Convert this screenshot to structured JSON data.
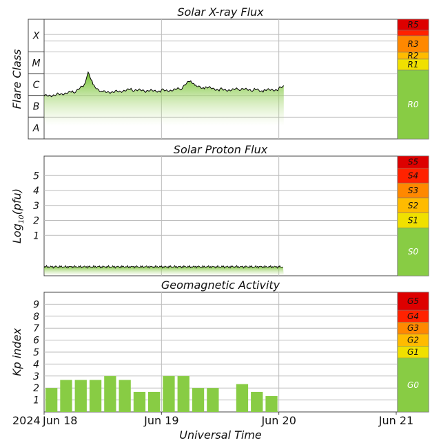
{
  "chart_data": [
    {
      "type": "area",
      "title": "Solar X-ray Flux",
      "ylabel": "Flare Class",
      "y_scale": "log",
      "flare_classes": [
        "X",
        "M",
        "C",
        "B",
        "A"
      ],
      "x_start": "2024-06-18",
      "x_end": "2024-06-21",
      "series": [
        {
          "x": [
            "2024-06-18T00:00",
            "2024-06-18T03:00",
            "2024-06-18T06:00",
            "2024-06-18T08:00",
            "2024-06-18T09:00",
            "2024-06-18T10:00",
            "2024-06-18T12:00",
            "2024-06-18T15:00",
            "2024-06-18T18:00",
            "2024-06-18T21:00",
            "2024-06-19T00:00",
            "2024-06-19T04:00",
            "2024-06-19T06:00",
            "2024-06-19T07:00",
            "2024-06-19T09:00",
            "2024-06-19T12:00",
            "2024-06-19T16:00",
            "2024-06-19T19:00",
            "2024-06-19T21:00",
            "2024-06-20T00:00",
            "2024-06-20T01:00"
          ],
          "values": [
            "B9",
            "C1.2",
            "C1.4",
            "C2.5",
            "M1.1",
            "C3",
            "C1.4",
            "C1.6",
            "C1.8",
            "C1.5",
            "C1.7",
            "C1.9",
            "C5",
            "C2.5",
            "C2.2",
            "C1.9",
            "C1.8",
            "C1.8",
            "C1.6",
            "C2",
            "C2.8"
          ]
        }
      ],
      "scale_bands": [
        "R5",
        "R4",
        "R3",
        "R2",
        "R1",
        "R0"
      ],
      "colors": {
        "line": "#000000",
        "fill": "#8cc83c",
        "R5": "#dd0000",
        "R4": "#ff2200",
        "R3": "#ff8800",
        "R2": "#ffbb00",
        "R1": "#f0e000",
        "R0": "#88cc44"
      }
    },
    {
      "type": "area",
      "title": "Solar Proton Flux",
      "ylabel": "Log10(pfu)",
      "ylabel_parts": {
        "base": "Log",
        "sub": "10",
        "rest": "(pfu)"
      },
      "yticks": [
        "1",
        "2",
        "3",
        "4",
        "5"
      ],
      "ylim": [
        -1.7,
        6.3
      ],
      "series": [
        {
          "x": [
            "2024-06-18T00:00",
            "2024-06-19T00:00",
            "2024-06-20T00:00",
            "2024-06-20T01:00"
          ],
          "values": [
            -1.1,
            -1.1,
            -1.1,
            -1.1
          ]
        }
      ],
      "scale_bands": [
        "S5",
        "S4",
        "S3",
        "S2",
        "S1",
        "S0"
      ],
      "colors": {
        "line": "#000000",
        "fill": "#8cc83c",
        "S5": "#dd0000",
        "S4": "#ff2200",
        "S3": "#ff8800",
        "S2": "#ffbb00",
        "S1": "#f0e000",
        "S0": "#88cc44"
      }
    },
    {
      "type": "bar",
      "title": "Geomagnetic Activity",
      "ylabel": "Kp index",
      "yticks": [
        "1",
        "2",
        "3",
        "4",
        "5",
        "6",
        "7",
        "8",
        "9"
      ],
      "ylim": [
        0,
        10
      ],
      "bar_interval_hours": 3,
      "values": [
        2,
        2.67,
        2.67,
        2.67,
        3,
        2.67,
        1.67,
        1.67,
        3,
        3,
        2,
        2,
        null,
        2.33,
        1.67,
        1.33
      ],
      "scale_bands": [
        "G5",
        "G4",
        "G3",
        "G2",
        "G1",
        "G0"
      ],
      "colors": {
        "bar": "#88cc44",
        "G5": "#dd0000",
        "G4": "#ff2200",
        "G3": "#ff8800",
        "G2": "#ffbb00",
        "G1": "#f0e000",
        "G0": "#88cc44"
      }
    }
  ],
  "x_axis": {
    "title": "Universal Time",
    "year": "2024",
    "tick_labels": [
      "Jun 18",
      "Jun 19",
      "Jun 20",
      "Jun 21"
    ]
  }
}
